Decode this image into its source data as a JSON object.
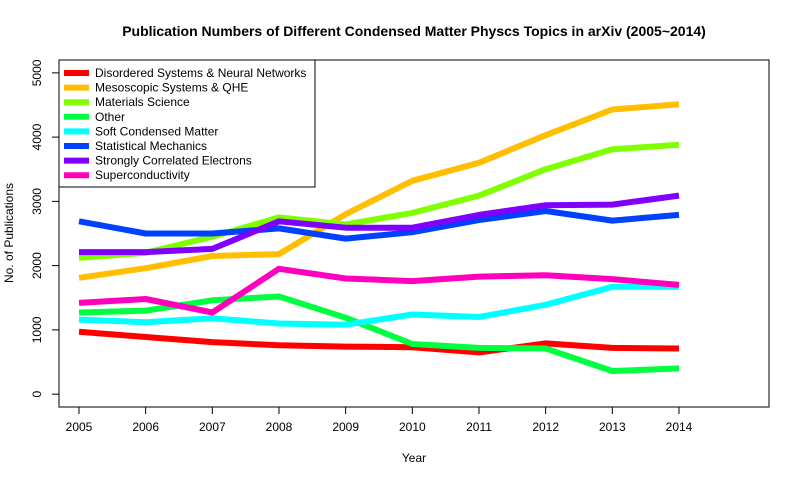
{
  "chart_data": {
    "type": "line",
    "title": "Publication Numbers of Different Condensed Matter Physcs Topics in arXiv (2005~2014)",
    "xlabel": "Year",
    "ylabel": "No. of Publications",
    "x": [
      2005,
      2006,
      2007,
      2008,
      2009,
      2010,
      2011,
      2012,
      2013,
      2014
    ],
    "xlim": [
      2004.7,
      2015.35
    ],
    "ylim": [
      -200,
      5200
    ],
    "yticks": [
      0,
      1000,
      2000,
      3000,
      4000,
      5000
    ],
    "legend_position": "top-left",
    "grid": false,
    "series": [
      {
        "name": "Disordered Systems & Neural Networks",
        "color": "#ff0000",
        "values": [
          970,
          890,
          810,
          760,
          740,
          730,
          650,
          790,
          720,
          710
        ]
      },
      {
        "name": "Mesoscopic Systems & QHE",
        "color": "#ffbf00",
        "values": [
          1810,
          1960,
          2150,
          2180,
          2800,
          3320,
          3600,
          4030,
          4430,
          4510
        ]
      },
      {
        "name": "Materials Science",
        "color": "#80ff00",
        "values": [
          2120,
          2200,
          2450,
          2750,
          2640,
          2820,
          3090,
          3500,
          3810,
          3880
        ]
      },
      {
        "name": "Other",
        "color": "#00ff40",
        "values": [
          1270,
          1300,
          1460,
          1520,
          1190,
          780,
          720,
          710,
          360,
          400
        ]
      },
      {
        "name": "Soft Condensed Matter",
        "color": "#00ffff",
        "values": [
          1160,
          1120,
          1180,
          1100,
          1080,
          1240,
          1200,
          1390,
          1670,
          1670
        ]
      },
      {
        "name": "Statistical Mechanics",
        "color": "#0040ff",
        "values": [
          2690,
          2500,
          2500,
          2580,
          2420,
          2520,
          2710,
          2850,
          2700,
          2790
        ]
      },
      {
        "name": "Strongly Correlated Electrons",
        "color": "#8000ff",
        "values": [
          2210,
          2210,
          2260,
          2690,
          2590,
          2590,
          2790,
          2940,
          2950,
          3090
        ]
      },
      {
        "name": "Superconductivity",
        "color": "#ff00bf",
        "values": [
          1420,
          1480,
          1270,
          1950,
          1800,
          1760,
          1830,
          1850,
          1790,
          1700
        ]
      }
    ]
  }
}
